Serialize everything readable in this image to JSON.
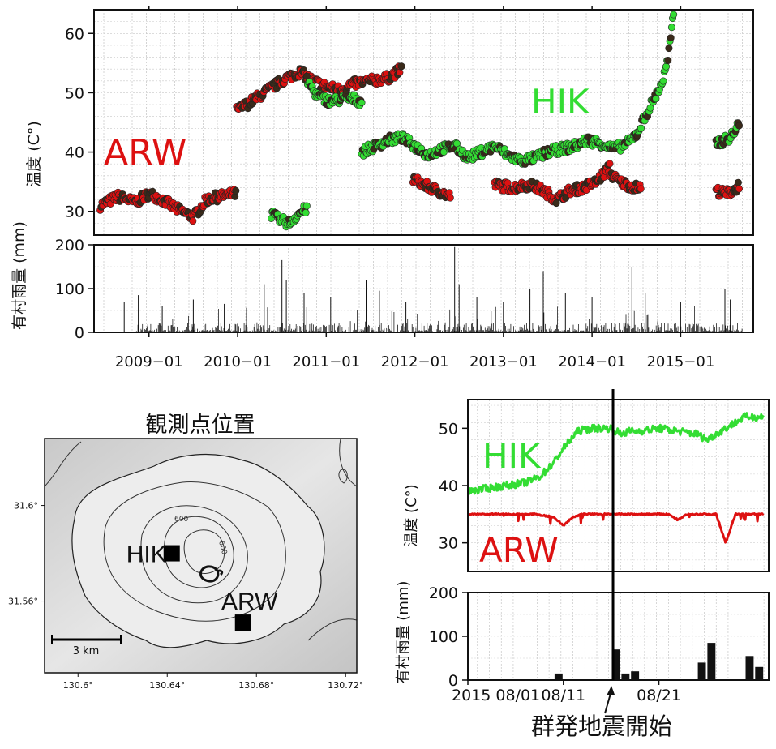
{
  "chart_data": [
    {
      "type": "scatter",
      "ylabel": "温度 (C°)",
      "ylim": [
        26,
        64
      ],
      "yticks": [
        30,
        40,
        50,
        60
      ],
      "xlim": [
        2008.38,
        2015.82
      ],
      "grid": true,
      "series": [
        {
          "name": "ARW",
          "color": "#dd1111",
          "segments": [
            {
              "x": [
                2008.45,
                2008.65,
                2008.85,
                2009.0,
                2009.15,
                2009.3,
                2009.5,
                2009.65,
                2009.8,
                2009.98
              ],
              "y": [
                31,
                32.5,
                31.5,
                33,
                32,
                30.5,
                29,
                32,
                32.5,
                33
              ]
            },
            {
              "x": [
                2009.99,
                2010.1,
                2010.25,
                2010.4,
                2010.55,
                2010.7,
                2010.85,
                2011.0,
                2011.15,
                2011.3,
                2011.5,
                2011.7,
                2011.85
              ],
              "y": [
                47,
                48,
                49.5,
                51,
                52.5,
                53.5,
                52,
                51,
                50.5,
                51.5,
                52,
                52.5,
                54
              ]
            },
            {
              "x": [
                2011.98,
                2012.1,
                2012.25,
                2012.4
              ],
              "y": [
                35.5,
                34.5,
                33.5,
                32.5
              ]
            },
            {
              "x": [
                2012.9,
                2013.1,
                2013.3,
                2013.45,
                2013.6,
                2013.75,
                2013.9,
                2014.05,
                2014.2
              ],
              "y": [
                34.5,
                34,
                34.5,
                33.5,
                32,
                33.5,
                34,
                35,
                37.5
              ]
            },
            {
              "x": [
                2014.2,
                2014.3,
                2014.4,
                2014.5,
                2014.55
              ],
              "y": [
                36.5,
                35,
                34.5,
                34,
                34
              ]
            },
            {
              "x": [
                2015.4,
                2015.5,
                2015.6,
                2015.66
              ],
              "y": [
                33.5,
                33,
                33.5,
                34.5
              ]
            }
          ]
        },
        {
          "name": "HIK",
          "color": "#33dd33",
          "segments": [
            {
              "x": [
                2010.38,
                2010.48,
                2010.58,
                2010.68,
                2010.78
              ],
              "y": [
                29.5,
                28.5,
                28,
                29.5,
                30.5
              ]
            },
            {
              "x": [
                2010.78,
                2010.9,
                2011.05,
                2011.2,
                2011.3,
                2011.4
              ],
              "y": [
                52,
                49.5,
                48.5,
                49,
                49,
                48.5
              ]
            },
            {
              "x": [
                2011.4,
                2011.55,
                2011.7,
                2011.85,
                2012.0,
                2012.15,
                2012.3,
                2012.45,
                2012.6,
                2012.75,
                2012.9,
                2013.05,
                2013.2,
                2013.35,
                2013.5,
                2013.65,
                2013.8,
                2013.95,
                2014.1,
                2014.25,
                2014.4,
                2014.5
              ],
              "y": [
                40,
                41,
                42,
                42.5,
                41,
                39.5,
                40.5,
                41,
                39,
                40,
                41,
                39.5,
                38.5,
                39,
                40,
                40.5,
                41,
                42,
                41.5,
                40.5,
                41.5,
                43
              ]
            },
            {
              "x": [
                2014.5,
                2014.6,
                2014.7,
                2014.8,
                2014.86,
                2014.92
              ],
              "y": [
                43,
                46,
                49,
                52,
                56,
                63
              ]
            },
            {
              "x": [
                2015.4,
                2015.5,
                2015.6,
                2015.66
              ],
              "y": [
                41.5,
                42,
                43,
                45
              ]
            }
          ]
        }
      ]
    },
    {
      "type": "bar",
      "ylabel": "有村雨量 (mm)",
      "ylim": [
        0,
        200
      ],
      "yticks": [
        0,
        100,
        200
      ],
      "xlim": [
        2008.38,
        2015.82
      ],
      "xtick_labels": [
        "2009−01",
        "2010−01",
        "2011−01",
        "2012−01",
        "2013−01",
        "2014−01",
        "2015−01"
      ],
      "xtick_values": [
        2009.0,
        2010.0,
        2011.0,
        2012.0,
        2013.0,
        2014.0,
        2015.0
      ],
      "peaks": [
        {
          "x": 2008.72,
          "y": 70
        },
        {
          "x": 2008.88,
          "y": 85
        },
        {
          "x": 2009.15,
          "y": 60
        },
        {
          "x": 2009.5,
          "y": 75
        },
        {
          "x": 2009.85,
          "y": 65
        },
        {
          "x": 2010.3,
          "y": 110
        },
        {
          "x": 2010.5,
          "y": 165
        },
        {
          "x": 2010.55,
          "y": 120
        },
        {
          "x": 2010.75,
          "y": 90
        },
        {
          "x": 2011.05,
          "y": 80
        },
        {
          "x": 2011.45,
          "y": 120
        },
        {
          "x": 2011.6,
          "y": 95
        },
        {
          "x": 2011.9,
          "y": 70
        },
        {
          "x": 2012.45,
          "y": 195
        },
        {
          "x": 2012.5,
          "y": 110
        },
        {
          "x": 2012.7,
          "y": 80
        },
        {
          "x": 2013.0,
          "y": 70
        },
        {
          "x": 2013.3,
          "y": 100
        },
        {
          "x": 2013.45,
          "y": 140
        },
        {
          "x": 2013.7,
          "y": 90
        },
        {
          "x": 2014.0,
          "y": 80
        },
        {
          "x": 2014.45,
          "y": 150
        },
        {
          "x": 2014.6,
          "y": 90
        },
        {
          "x": 2015.0,
          "y": 70
        },
        {
          "x": 2015.5,
          "y": 100
        },
        {
          "x": 2015.56,
          "y": 75
        }
      ]
    },
    {
      "type": "line",
      "ylabel": "温度 (C°)",
      "ylim": [
        25,
        55
      ],
      "yticks": [
        30,
        40,
        50
      ],
      "xlim": [
        0,
        31.5
      ],
      "grid": true,
      "series": [
        {
          "name": "HIK",
          "color": "#33dd33",
          "x": [
            0,
            2,
            4,
            6,
            7.5,
            9,
            10,
            11.5,
            13,
            15,
            16,
            17,
            18,
            20,
            22,
            24,
            25,
            26,
            28,
            29,
            31
          ],
          "y": [
            39,
            39.5,
            40,
            40.5,
            41.5,
            44,
            46.5,
            49.5,
            50,
            50,
            49,
            49.5,
            49.5,
            50,
            49.5,
            49,
            48,
            49,
            51,
            52,
            52
          ]
        },
        {
          "name": "ARW",
          "color": "#dd1111",
          "x": [
            0,
            4,
            7,
            9,
            10,
            11,
            12,
            13,
            15,
            17,
            19,
            21,
            22,
            23,
            25,
            26,
            27,
            28,
            30,
            31
          ],
          "y": [
            35,
            35,
            35,
            34.5,
            33,
            34.5,
            35,
            35,
            35,
            35,
            35,
            35,
            34,
            35,
            35,
            35,
            30,
            35,
            35,
            35
          ]
        }
      ],
      "event_x": 15.2
    },
    {
      "type": "bar",
      "ylabel": "有村雨量 (mm)",
      "ylim": [
        0,
        200
      ],
      "yticks": [
        0,
        100,
        200
      ],
      "xlim": [
        0,
        31.5
      ],
      "xtick_labels": [
        "2015 08/01",
        "08/11",
        "08/21"
      ],
      "xtick_values": [
        0,
        10,
        20
      ],
      "categories_day": [
        9.5,
        15.5,
        16.5,
        17.5,
        24.5,
        25.5,
        29.5,
        30.5
      ],
      "values": [
        15,
        70,
        15,
        20,
        40,
        85,
        55,
        30
      ],
      "event_x": 15.2
    }
  ],
  "map": {
    "title": "観測点位置",
    "x_ticks": [
      "130.6°",
      "130.64°",
      "130.68°",
      "130.72°"
    ],
    "y_ticks": [
      "31.6°",
      "31.56°"
    ],
    "contour_labels": [
      "600",
      "600"
    ],
    "scalebar_label": "3 km",
    "stations": [
      {
        "name": "HIK",
        "lon": 130.642,
        "lat": 31.58
      },
      {
        "name": "ARW",
        "lon": 130.674,
        "lat": 31.551
      }
    ]
  },
  "big_labels": {
    "arw_top": "ARW",
    "hik_top": "HIK",
    "hik_right": "HIK",
    "arw_right": "ARW"
  },
  "annotation": "群発地震開始"
}
